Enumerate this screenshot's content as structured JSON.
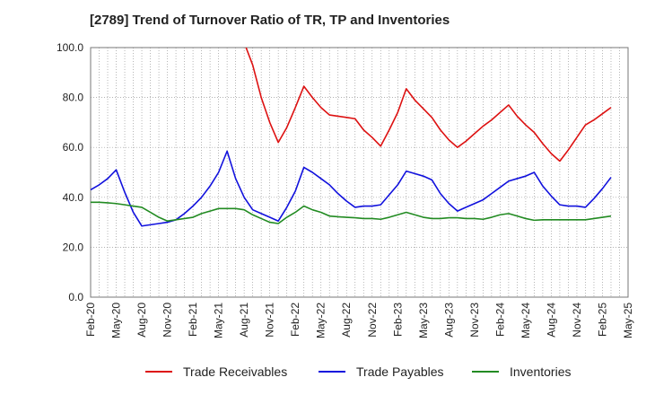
{
  "chart_data": {
    "type": "line",
    "title": "[2789]  Trend of Turnover Ratio of TR, TP and Inventories",
    "xlabel": "",
    "ylabel": "",
    "ylim": [
      0,
      100
    ],
    "y_ticks": [
      "0.0",
      "20.0",
      "40.0",
      "60.0",
      "80.0",
      "100.0"
    ],
    "x_ticks": [
      "Feb-20",
      "May-20",
      "Aug-20",
      "Nov-20",
      "Feb-21",
      "May-21",
      "Aug-21",
      "Nov-21",
      "Feb-22",
      "May-22",
      "Aug-22",
      "Nov-22",
      "Feb-23",
      "May-23",
      "Aug-23",
      "Nov-23",
      "Feb-24",
      "May-24",
      "Aug-24",
      "Nov-24",
      "Feb-25",
      "May-25"
    ],
    "grid": true,
    "legend_position": "bottom",
    "series": [
      {
        "name": "Trade Receivables",
        "color": "#dd1111",
        "values": [
          null,
          null,
          null,
          null,
          null,
          null,
          null,
          null,
          null,
          null,
          null,
          null,
          null,
          null,
          null,
          null,
          null,
          null,
          102,
          93,
          80,
          70,
          62,
          68,
          76,
          84.5,
          80,
          76,
          73,
          72.5,
          72,
          71.5,
          67,
          64,
          60.5,
          67,
          74,
          83.5,
          79,
          75.5,
          72,
          67,
          63,
          60,
          62.5,
          65.5,
          68.5,
          71,
          74,
          77,
          72.5,
          69,
          66,
          61.5,
          57.5,
          54.5,
          59,
          64,
          69,
          71,
          73.5,
          76
        ]
      },
      {
        "name": "Trade Payables",
        "color": "#1111dd",
        "values": [
          43,
          45,
          47.5,
          51,
          42,
          34,
          28.5,
          29,
          29.5,
          30,
          31,
          33.5,
          36.5,
          40,
          44.5,
          50,
          58.5,
          47.5,
          40,
          35,
          33.5,
          32,
          30.5,
          36,
          42.5,
          52,
          50,
          47.5,
          45,
          41.5,
          38.5,
          36,
          36.5,
          36.5,
          37,
          41,
          45,
          50.5,
          49.5,
          48.5,
          47,
          41.5,
          37.5,
          34.5,
          36,
          37.5,
          39,
          41.5,
          44,
          46.5,
          47.5,
          48.5,
          50,
          44.5,
          40.5,
          37,
          36.5,
          36.5,
          36,
          39.5,
          43.5,
          48
        ]
      },
      {
        "name": "Inventories",
        "color": "#228b22",
        "values": [
          38,
          38,
          37.8,
          37.5,
          37,
          36.5,
          36,
          34,
          32,
          30.5,
          31,
          31.5,
          32,
          33.5,
          34.5,
          35.5,
          35.5,
          35.5,
          35,
          33,
          31.5,
          30,
          29.5,
          32,
          34,
          36.5,
          35,
          34,
          32.5,
          32.2,
          32,
          31.8,
          31.5,
          31.5,
          31.2,
          32,
          33,
          34,
          33,
          32,
          31.5,
          31.5,
          31.8,
          31.8,
          31.5,
          31.5,
          31.2,
          32,
          33,
          33.5,
          32.5,
          31.5,
          30.8,
          31,
          31,
          31,
          31,
          31,
          31,
          31.5,
          32,
          32.5
        ]
      }
    ]
  }
}
